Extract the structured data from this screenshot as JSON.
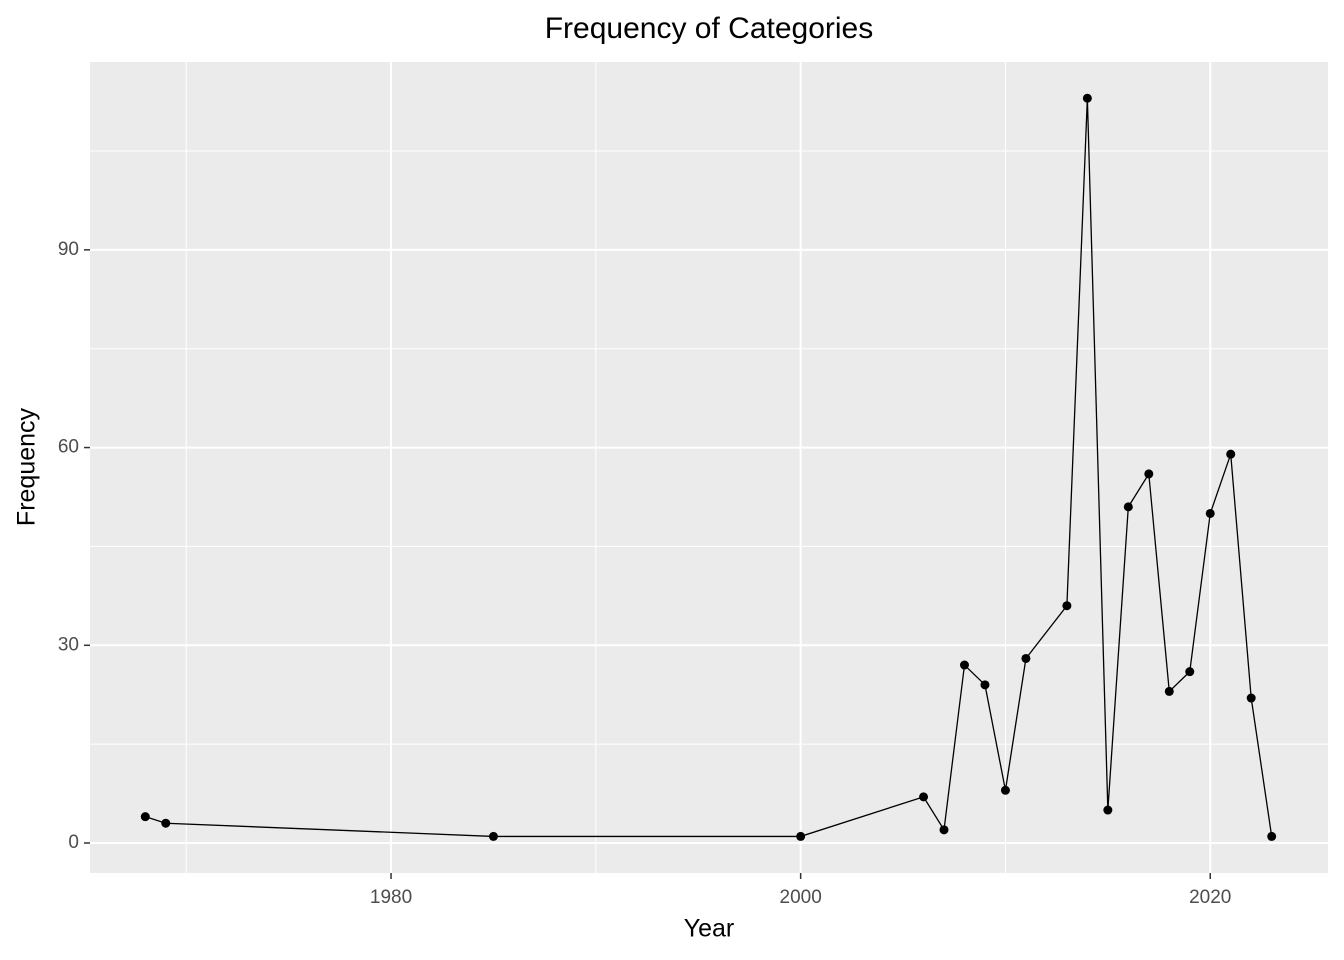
{
  "chart_data": {
    "type": "line",
    "title": "Frequency of Categories",
    "x_label": "Year",
    "y_label": "Frequency",
    "x": [
      1968,
      1969,
      1985,
      2000,
      2006,
      2007,
      2008,
      2009,
      2010,
      2011,
      2013,
      2014,
      2015,
      2016,
      2017,
      2018,
      2019,
      2020,
      2021,
      2022,
      2023
    ],
    "values": [
      4,
      3,
      1,
      1,
      7,
      2,
      27,
      24,
      8,
      28,
      36,
      113,
      5,
      51,
      56,
      23,
      26,
      50,
      59,
      22,
      1
    ],
    "color": "#000000",
    "xlim": [
      1965.3,
      2025.75
    ],
    "xticks": [
      1980,
      2000,
      2020
    ],
    "ylim": [
      -4.55,
      118.5
    ],
    "yticks": [
      0,
      30,
      60,
      90
    ],
    "grid": true
  }
}
